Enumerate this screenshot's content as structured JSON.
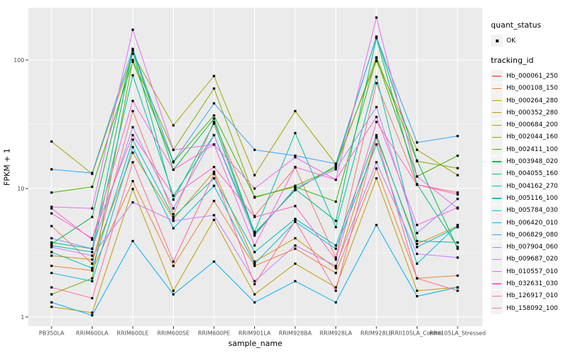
{
  "style": {
    "background": "#FFFFFF",
    "panel_bg": "#EBEBEB",
    "grid_color": "#FFFFFF",
    "legend_key_bg": "#F2F2F2",
    "tick_color": "#333333",
    "axis_text_color": "#4D4D4D",
    "point_color": "#000000"
  },
  "legend": {
    "position": "right",
    "quant_status": {
      "title": "quant_status",
      "items": [
        {
          "label": "OK",
          "symbol": "black-square-point"
        }
      ]
    },
    "tracking_id": {
      "title": "tracking_id"
    }
  },
  "chart_data": {
    "type": "line",
    "title": "",
    "xlabel": "sample_name",
    "ylabel": "FPKM + 1",
    "y_scale": "log10",
    "ylim": [
      0.85,
      255
    ],
    "y_ticks": [
      1,
      10,
      100
    ],
    "y_tick_labels": [
      "1",
      "10",
      "100"
    ],
    "y_minor_gridlines": [
      3.1623,
      31.623
    ],
    "grid": true,
    "legend_position": "right",
    "point_shape": "filled-black-square",
    "categories": [
      "PB350LA",
      "RRIM600LA",
      "RRIM600LE",
      "RRIM600SE",
      "RRIM600PE",
      "RRIM901LA",
      "RRIM928BA",
      "RRIM928LA",
      "RRIM928LE",
      "RRII105LA_Control",
      "RRII105LA_Stressed"
    ],
    "series": [
      {
        "name": "Hb_000061_250",
        "color": "#F8766D",
        "values": [
          5.1,
          2.6,
          40,
          6.3,
          33,
          6.1,
          14.6,
          2.9,
          66,
          10.7,
          9.3
        ]
      },
      {
        "name": "Hb_000108_150",
        "color": "#EA8331",
        "values": [
          2.5,
          2.3,
          11.4,
          2.5,
          8.0,
          2.5,
          3.4,
          2.2,
          14.3,
          2.0,
          2.1
        ]
      },
      {
        "name": "Hb_000264_280",
        "color": "#D89000",
        "values": [
          3.0,
          2.8,
          19,
          5.8,
          13.5,
          2.7,
          4.1,
          2.4,
          25,
          3.7,
          5.1
        ]
      },
      {
        "name": "Hb_000352_280",
        "color": "#C09B00",
        "values": [
          1.2,
          1.08,
          9.9,
          1.6,
          5.7,
          1.5,
          2.6,
          1.7,
          12,
          1.6,
          1.7
        ]
      },
      {
        "name": "Hb_000684_200",
        "color": "#A3A500",
        "values": [
          23.2,
          13.0,
          112,
          31,
          75,
          12.7,
          40,
          15.5,
          98,
          20,
          12.7
        ]
      },
      {
        "name": "Hb_002044_160",
        "color": "#7CAE00",
        "values": [
          1.5,
          2.0,
          100,
          20,
          60,
          8.5,
          10.5,
          14.5,
          105,
          16.3,
          14.4
        ]
      },
      {
        "name": "Hb_002411_100",
        "color": "#39B600",
        "values": [
          9.3,
          10.3,
          97,
          16,
          37,
          8.6,
          10.3,
          7.9,
          103,
          12.4,
          18
        ]
      },
      {
        "name": "Hb_003948_020",
        "color": "#00BB4E",
        "values": [
          3.7,
          6.0,
          120,
          14,
          35,
          4.5,
          9.7,
          15,
          152,
          16.5,
          3.4
        ]
      },
      {
        "name": "Hb_004055_160",
        "color": "#00BF7D",
        "values": [
          3.8,
          3.4,
          118,
          8.2,
          32,
          4.4,
          9.9,
          5.6,
          148,
          10.8,
          3.5
        ]
      },
      {
        "name": "Hb_004162_270",
        "color": "#00C1A3",
        "values": [
          3.6,
          3.2,
          76,
          8.8,
          26,
          4.6,
          27,
          5.0,
          74,
          3.9,
          3.8
        ]
      },
      {
        "name": "Hb_005116_100",
        "color": "#00BFC4",
        "values": [
          3.2,
          2.4,
          24,
          6.0,
          12,
          3.2,
          5.8,
          3.6,
          26,
          3.5,
          5.0
        ]
      },
      {
        "name": "Hb_005784_030",
        "color": "#00BAE0",
        "values": [
          2.2,
          1.9,
          21,
          4.9,
          10.5,
          2.6,
          5.5,
          3.4,
          22,
          2.6,
          5.2
        ]
      },
      {
        "name": "Hb_006420_010",
        "color": "#00B0F6",
        "values": [
          1.3,
          1.03,
          3.9,
          1.5,
          2.7,
          1.3,
          1.9,
          1.3,
          5.2,
          1.45,
          1.7
        ]
      },
      {
        "name": "Hb_006829_080",
        "color": "#35A2FF",
        "values": [
          14.1,
          13.2,
          122,
          16.2,
          46,
          20,
          18,
          15.6,
          150,
          22.8,
          25.6
        ]
      },
      {
        "name": "Hb_007904_060",
        "color": "#9590FF",
        "values": [
          4.1,
          3.4,
          30,
          7.0,
          26,
          4.3,
          10.1,
          14.1,
          43,
          4.5,
          8.3
        ]
      },
      {
        "name": "Hb_009687_020",
        "color": "#C77CFF",
        "values": [
          3.5,
          3.0,
          7.8,
          5.6,
          6.2,
          1.9,
          3.6,
          2.5,
          16,
          3.1,
          2.9
        ]
      },
      {
        "name": "Hb_010557_010",
        "color": "#E76BF3",
        "values": [
          7.2,
          7.0,
          172,
          20,
          22,
          10,
          17.5,
          11.7,
          214,
          12.4,
          7.0
        ]
      },
      {
        "name": "Hb_032631_030",
        "color": "#FA62DB",
        "values": [
          7.0,
          4.0,
          48,
          14,
          22,
          3.6,
          14.7,
          11.7,
          36,
          5.2,
          7.1
        ]
      },
      {
        "name": "Hb_126917_010",
        "color": "#FF62BC",
        "values": [
          6.4,
          4.1,
          26,
          8.8,
          14.7,
          6.0,
          7.3,
          2.8,
          33,
          10.7,
          9.0
        ]
      },
      {
        "name": "Hb_158092_100",
        "color": "#FF6A98",
        "values": [
          1.7,
          1.4,
          16,
          2.7,
          13,
          1.8,
          5.6,
          1.6,
          25,
          2.0,
          1.6
        ]
      }
    ]
  }
}
